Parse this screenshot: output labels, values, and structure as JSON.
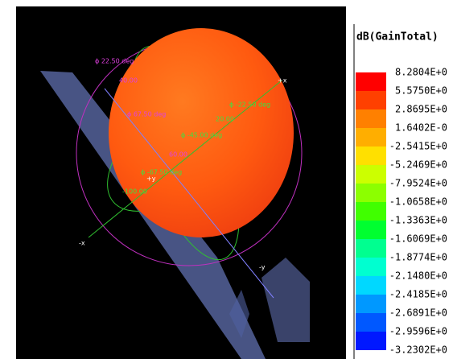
{
  "legend": {
    "title": "dB(GainTotal)",
    "labels": [
      "8.2804E+0",
      "5.5750E+0",
      "2.8695E+0",
      "1.6402E-0",
      "-2.5415E+0",
      "-5.2469E+0",
      "-7.9524E+0",
      "-1.0658E+0",
      "-1.3363E+0",
      "-1.6069E+0",
      "-1.8774E+0",
      "-2.1480E+0",
      "-2.4185E+0",
      "-2.6891E+0",
      "-2.9596E+0",
      "-3.2302E+0"
    ],
    "colors": [
      "#ff0000",
      "#ff4000",
      "#ff8000",
      "#ffae00",
      "#ffe000",
      "#ccff00",
      "#8cff00",
      "#40ff00",
      "#00ff30",
      "#00ff90",
      "#00ffd0",
      "#00d8ff",
      "#0098ff",
      "#0058ff",
      "#0018ff"
    ]
  },
  "view": {
    "annotations": [
      {
        "text": "ϕ 22.50 deg",
        "color": "#e040e0"
      },
      {
        "text": "40.00",
        "color": "#e040e0"
      },
      {
        "text": "ϕ 67.50 deg",
        "color": "#e040e0"
      },
      {
        "text": "ϕ -22.50 deg",
        "color": "#40e040"
      },
      {
        "text": "20.00",
        "color": "#40e040"
      },
      {
        "text": "ϕ -45.00 deg",
        "color": "#40e040"
      },
      {
        "text": "60.00",
        "color": "#e040e0"
      },
      {
        "text": "ϕ -67.50 deg",
        "color": "#40e040"
      },
      {
        "text": "-100.00",
        "color": "#40e040"
      },
      {
        "text": "+x",
        "color": "#ffffff"
      },
      {
        "text": "+y",
        "color": "#ffffff"
      },
      {
        "text": "-x",
        "color": "#ffffff"
      },
      {
        "text": "-y",
        "color": "#ffffff"
      }
    ]
  }
}
